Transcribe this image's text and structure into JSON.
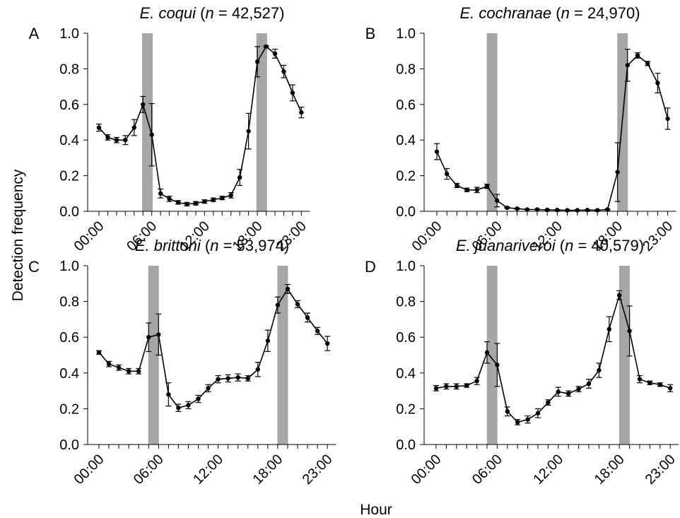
{
  "figure": {
    "ylabel": "Detection frequency",
    "xlabel": "Hour"
  },
  "chart_data": [
    {
      "type": "line",
      "panel": "A",
      "title_species": "E. coqui",
      "title_n_label": "n",
      "title_count": " = 42,527)",
      "x": [
        0,
        1,
        2,
        3,
        4,
        5,
        6,
        7,
        8,
        9,
        10,
        11,
        12,
        13,
        14,
        15,
        16,
        17,
        18,
        19,
        20,
        21,
        22,
        23
      ],
      "y": [
        0.47,
        0.415,
        0.4,
        0.4,
        0.47,
        0.6,
        0.43,
        0.1,
        0.07,
        0.05,
        0.04,
        0.045,
        0.055,
        0.065,
        0.075,
        0.09,
        0.19,
        0.45,
        0.84,
        0.925,
        0.885,
        0.785,
        0.665,
        0.555
      ],
      "err": [
        0.02,
        0.015,
        0.015,
        0.025,
        0.045,
        0.045,
        0.175,
        0.025,
        0.015,
        0.01,
        0.01,
        0.01,
        0.01,
        0.01,
        0.01,
        0.015,
        0.045,
        0.1,
        0.085,
        0.005,
        0.025,
        0.035,
        0.045,
        0.03
      ],
      "shade": [
        5.5,
        18.5
      ],
      "xticks": [
        "00:00",
        "06:00",
        "12:00",
        "18:00",
        "23:00"
      ],
      "yticks": [
        "0.0",
        "0.2",
        "0.4",
        "0.6",
        "0.8",
        "1.0"
      ],
      "ylim": [
        0,
        1
      ]
    },
    {
      "type": "line",
      "panel": "B",
      "title_species": "E. cochranae",
      "title_n_label": "n",
      "title_count": " = 24,970)",
      "x": [
        0,
        1,
        2,
        3,
        4,
        5,
        6,
        7,
        8,
        9,
        10,
        11,
        12,
        13,
        14,
        15,
        16,
        17,
        18,
        19,
        20,
        21,
        22,
        23
      ],
      "y": [
        0.335,
        0.21,
        0.145,
        0.12,
        0.12,
        0.14,
        0.06,
        0.02,
        0.015,
        0.01,
        0.01,
        0.008,
        0.007,
        0.006,
        0.006,
        0.007,
        0.006,
        0.01,
        0.22,
        0.82,
        0.875,
        0.83,
        0.72,
        0.52
      ],
      "err": [
        0.045,
        0.03,
        0.012,
        0.01,
        0.015,
        0.012,
        0.035,
        0.004,
        0.003,
        0.002,
        0.002,
        0.002,
        0.002,
        0.002,
        0.002,
        0.002,
        0.002,
        0.003,
        0.165,
        0.09,
        0.015,
        0.012,
        0.055,
        0.06
      ],
      "shade": [
        5.5,
        18.5
      ],
      "xticks": [
        "00:00",
        "06:00",
        "12:00",
        "18:00",
        "23:00"
      ],
      "yticks": [
        "0.0",
        "0.2",
        "0.4",
        "0.6",
        "0.8",
        "1.0"
      ],
      "ylim": [
        0,
        1
      ]
    },
    {
      "type": "line",
      "panel": "C",
      "title_species": "E. brittoni",
      "title_n_label": "n",
      "title_count": " = 53,974)",
      "x": [
        0,
        1,
        2,
        3,
        4,
        5,
        6,
        7,
        8,
        9,
        10,
        11,
        12,
        13,
        14,
        15,
        16,
        17,
        18,
        19,
        20,
        21,
        22,
        23
      ],
      "y": [
        0.515,
        0.45,
        0.43,
        0.41,
        0.41,
        0.6,
        0.615,
        0.28,
        0.205,
        0.22,
        0.255,
        0.315,
        0.365,
        0.37,
        0.375,
        0.37,
        0.42,
        0.58,
        0.78,
        0.87,
        0.785,
        0.71,
        0.635,
        0.565
      ],
      "err": [
        0.01,
        0.015,
        0.015,
        0.015,
        0.015,
        0.08,
        0.115,
        0.065,
        0.02,
        0.02,
        0.02,
        0.02,
        0.02,
        0.02,
        0.02,
        0.015,
        0.04,
        0.06,
        0.045,
        0.025,
        0.02,
        0.025,
        0.02,
        0.04
      ],
      "shade": [
        5.5,
        18.5
      ],
      "xticks": [
        "00:00",
        "06:00",
        "12:00",
        "18:00",
        "23:00"
      ],
      "yticks": [
        "0.0",
        "0.2",
        "0.4",
        "0.6",
        "0.8",
        "1.0"
      ],
      "ylim": [
        0,
        1
      ]
    },
    {
      "type": "line",
      "panel": "D",
      "title_species": "E. juanariveroi",
      "title_n_label": "n",
      "title_count": " = 40,579)",
      "x": [
        0,
        1,
        2,
        3,
        4,
        5,
        6,
        7,
        8,
        9,
        10,
        11,
        12,
        13,
        14,
        15,
        16,
        17,
        18,
        19,
        20,
        21,
        22,
        23
      ],
      "y": [
        0.315,
        0.325,
        0.325,
        0.33,
        0.355,
        0.515,
        0.445,
        0.185,
        0.125,
        0.14,
        0.175,
        0.235,
        0.295,
        0.285,
        0.31,
        0.34,
        0.415,
        0.645,
        0.835,
        0.635,
        0.365,
        0.345,
        0.335,
        0.315
      ],
      "err": [
        0.015,
        0.015,
        0.015,
        0.01,
        0.02,
        0.06,
        0.12,
        0.025,
        0.015,
        0.02,
        0.025,
        0.015,
        0.025,
        0.015,
        0.015,
        0.025,
        0.04,
        0.07,
        0.025,
        0.14,
        0.02,
        0.01,
        0.01,
        0.02
      ],
      "shade": [
        5.5,
        18.5
      ],
      "xticks": [
        "00:00",
        "06:00",
        "12:00",
        "18:00",
        "23:00"
      ],
      "yticks": [
        "0.0",
        "0.2",
        "0.4",
        "0.6",
        "0.8",
        "1.0"
      ],
      "ylim": [
        0,
        1
      ]
    }
  ]
}
